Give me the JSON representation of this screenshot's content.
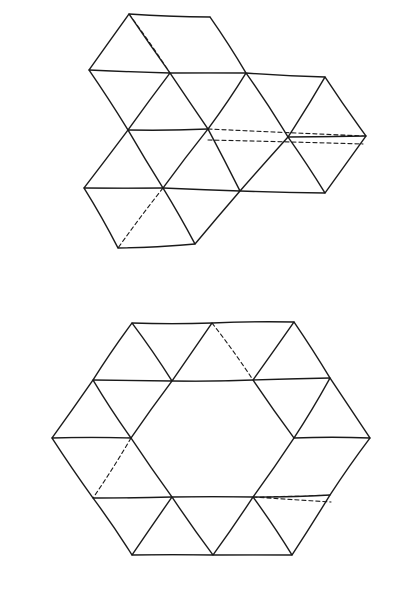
{
  "diagrams": [
    {
      "id": "cluster-triangular-tiling",
      "solid_edges": [
        [
          129,
          14,
          210,
          17
        ],
        [
          210,
          17,
          246,
          73
        ],
        [
          246,
          73,
          170,
          73
        ],
        [
          170,
          73,
          89,
          70
        ],
        [
          89,
          70,
          129,
          14
        ],
        [
          129,
          14,
          170,
          73
        ],
        [
          89,
          70,
          128,
          130
        ],
        [
          128,
          130,
          170,
          73
        ],
        [
          170,
          73,
          208,
          129
        ],
        [
          208,
          129,
          246,
          73
        ],
        [
          246,
          73,
          325,
          77
        ],
        [
          325,
          77,
          288,
          137
        ],
        [
          288,
          137,
          246,
          73
        ],
        [
          325,
          77,
          366,
          136
        ],
        [
          366,
          136,
          288,
          137
        ],
        [
          128,
          130,
          208,
          129
        ],
        [
          128,
          130,
          84,
          188
        ],
        [
          84,
          188,
          163,
          188
        ],
        [
          163,
          188,
          128,
          130
        ],
        [
          208,
          129,
          163,
          188
        ],
        [
          163,
          188,
          240,
          191
        ],
        [
          240,
          191,
          208,
          129
        ],
        [
          240,
          191,
          288,
          137
        ],
        [
          288,
          137,
          325,
          193
        ],
        [
          325,
          193,
          240,
          191
        ],
        [
          325,
          193,
          366,
          136
        ],
        [
          84,
          188,
          118,
          248
        ],
        [
          163,
          188,
          195,
          244
        ],
        [
          195,
          244,
          240,
          191
        ],
        [
          118,
          248,
          195,
          244
        ]
      ],
      "dashed_edges": [
        [
          129,
          14,
          170,
          73
        ],
        [
          163,
          188,
          118,
          248
        ],
        [
          208,
          129,
          366,
          136
        ],
        [
          208,
          140,
          363,
          144
        ]
      ]
    },
    {
      "id": "hexagon-ring",
      "solid_edges": [
        [
          132,
          323,
          212,
          323
        ],
        [
          212,
          323,
          294,
          322
        ],
        [
          294,
          322,
          330,
          378
        ],
        [
          330,
          378,
          370,
          438
        ],
        [
          370,
          438,
          330,
          495
        ],
        [
          330,
          495,
          292,
          555
        ],
        [
          292,
          555,
          213,
          555
        ],
        [
          213,
          555,
          132,
          555
        ],
        [
          132,
          555,
          93,
          498
        ],
        [
          93,
          498,
          52,
          438
        ],
        [
          52,
          438,
          93,
          380
        ],
        [
          93,
          380,
          132,
          323
        ],
        [
          132,
          323,
          172,
          381
        ],
        [
          172,
          381,
          212,
          323
        ],
        [
          294,
          322,
          253,
          380
        ],
        [
          93,
          380,
          172,
          381
        ],
        [
          172,
          381,
          253,
          380
        ],
        [
          253,
          380,
          330,
          378
        ],
        [
          93,
          380,
          131,
          438
        ],
        [
          131,
          438,
          172,
          381
        ],
        [
          253,
          380,
          294,
          438
        ],
        [
          294,
          438,
          330,
          378
        ],
        [
          52,
          438,
          131,
          438
        ],
        [
          294,
          438,
          370,
          438
        ],
        [
          131,
          438,
          172,
          497
        ],
        [
          172,
          497,
          93,
          498
        ],
        [
          294,
          438,
          253,
          497
        ],
        [
          253,
          497,
          330,
          495
        ],
        [
          172,
          497,
          253,
          497
        ],
        [
          132,
          555,
          172,
          497
        ],
        [
          172,
          497,
          213,
          555
        ],
        [
          213,
          555,
          253,
          497
        ],
        [
          253,
          497,
          292,
          555
        ]
      ],
      "dashed_edges": [
        [
          212,
          323,
          253,
          380
        ],
        [
          131,
          438,
          93,
          498
        ],
        [
          253,
          497,
          330,
          495
        ],
        [
          253,
          497,
          331,
          502
        ]
      ]
    }
  ],
  "colors": {
    "ink": "#1a1a1a",
    "paper": "#ffffff"
  }
}
